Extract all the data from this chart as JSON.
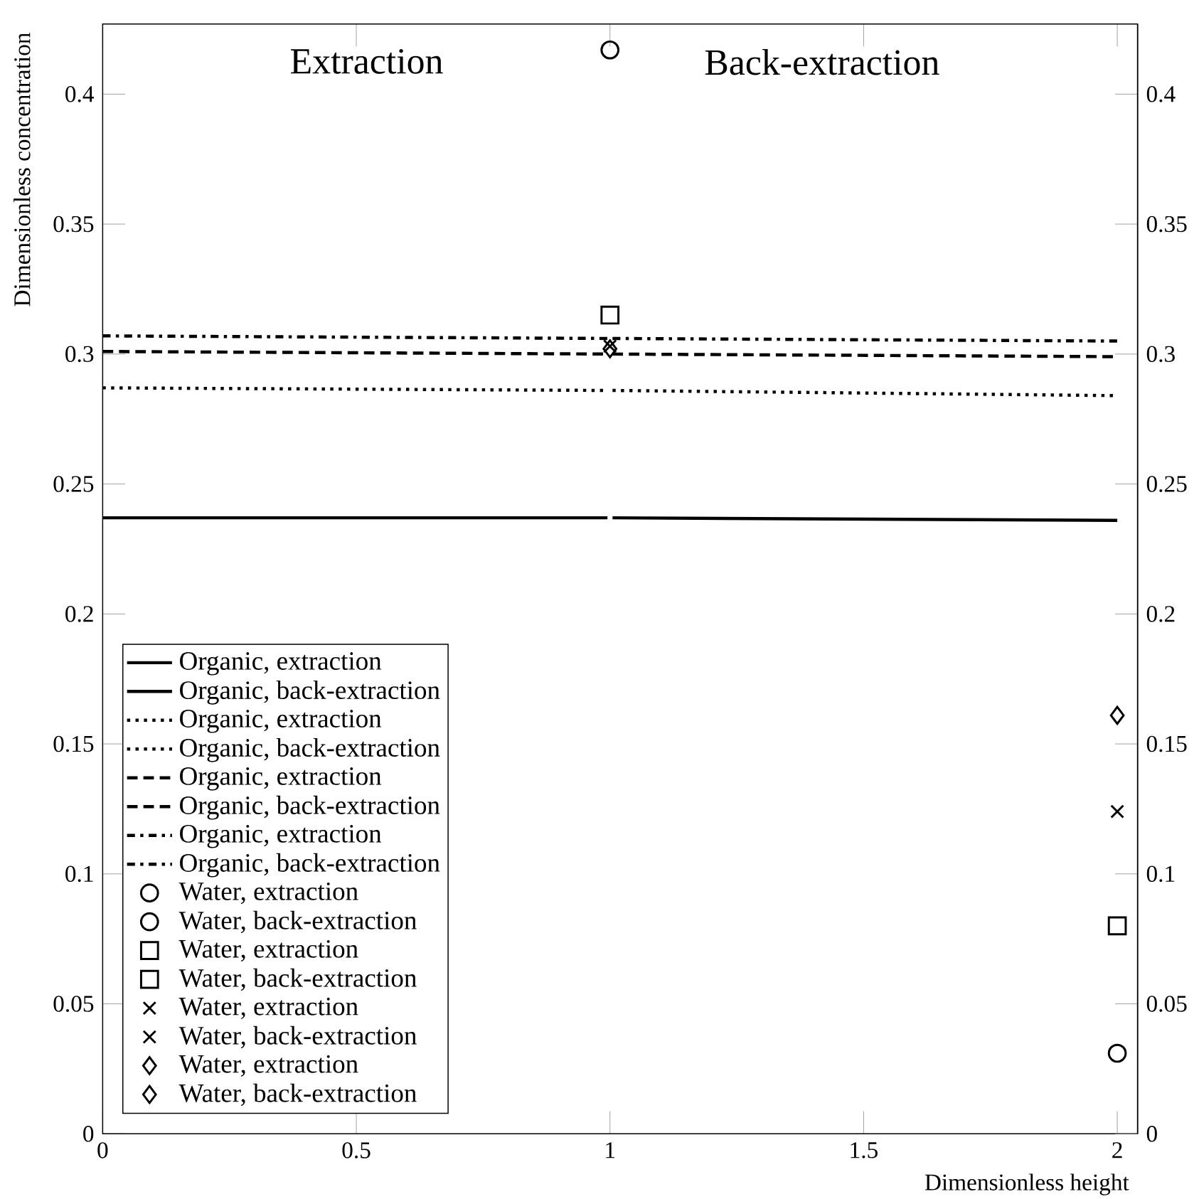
{
  "chart_data": {
    "type": "line",
    "xlabel": "Dimensionless height",
    "ylabel": "Dimensionless concentration",
    "annotations": [
      "Extraction",
      "Back-extraction"
    ],
    "xlim": [
      0,
      2.04
    ],
    "ylim": [
      0,
      0.427
    ],
    "xticks": [
      0,
      0.5,
      1,
      1.5,
      2
    ],
    "yticks": [
      0,
      0.05,
      0.1,
      0.15,
      0.2,
      0.25,
      0.3,
      0.35,
      0.4
    ],
    "y2lim": [
      0,
      0.427
    ],
    "y2ticks": [
      0,
      0.05,
      0.1,
      0.15,
      0.2,
      0.25,
      0.3,
      0.35,
      0.4
    ],
    "grid": false,
    "legend": "bottom left",
    "series": [
      {
        "name": "Organic, extraction",
        "line_style": "solid",
        "color": "#000000",
        "x": [
          0,
          0.995
        ],
        "values": [
          0.237,
          0.237
        ]
      },
      {
        "name": "Organic, back-extraction",
        "line_style": "solid",
        "color": "#000000",
        "x": [
          1.005,
          2
        ],
        "values": [
          0.237,
          0.236
        ]
      },
      {
        "name": "Organic, extraction",
        "line_style": "dotted",
        "color": "#000000",
        "x": [
          0,
          0.995
        ],
        "values": [
          0.287,
          0.286
        ]
      },
      {
        "name": "Organic, back-extraction",
        "line_style": "dotted",
        "color": "#000000",
        "x": [
          1.005,
          2
        ],
        "values": [
          0.286,
          0.284
        ]
      },
      {
        "name": "Organic, extraction",
        "line_style": "dashed",
        "color": "#000000",
        "x": [
          0,
          0.995
        ],
        "values": [
          0.301,
          0.3
        ]
      },
      {
        "name": "Organic, back-extraction",
        "line_style": "dashed",
        "color": "#000000",
        "x": [
          1.005,
          2
        ],
        "values": [
          0.3,
          0.299
        ]
      },
      {
        "name": "Organic, extraction",
        "line_style": "dashdot",
        "color": "#000000",
        "x": [
          0,
          0.995
        ],
        "values": [
          0.307,
          0.306
        ]
      },
      {
        "name": "Organic, back-extraction",
        "line_style": "dashdot",
        "color": "#000000",
        "x": [
          1.005,
          2
        ],
        "values": [
          0.306,
          0.305
        ]
      },
      {
        "name": "Water, extraction",
        "type": "scatter",
        "marker": "circle",
        "color": "#000000",
        "x": [
          1
        ],
        "values": [
          0.417
        ]
      },
      {
        "name": "Water, back-extraction",
        "type": "scatter",
        "marker": "circle",
        "color": "#000000",
        "x": [
          2
        ],
        "values": [
          0.031
        ]
      },
      {
        "name": "Water, extraction",
        "type": "scatter",
        "marker": "square",
        "color": "#000000",
        "x": [
          1
        ],
        "values": [
          0.315
        ]
      },
      {
        "name": "Water, back-extraction",
        "type": "scatter",
        "marker": "square",
        "color": "#000000",
        "x": [
          2
        ],
        "values": [
          0.08
        ]
      },
      {
        "name": "Water, extraction",
        "type": "scatter",
        "marker": "cross",
        "color": "#000000",
        "x": [
          1
        ],
        "values": [
          0.303
        ]
      },
      {
        "name": "Water, back-extraction",
        "type": "scatter",
        "marker": "cross",
        "color": "#000000",
        "x": [
          2
        ],
        "values": [
          0.124
        ]
      },
      {
        "name": "Water, extraction",
        "type": "scatter",
        "marker": "diamond",
        "color": "#000000",
        "x": [
          1
        ],
        "values": [
          0.302
        ]
      },
      {
        "name": "Water, back-extraction",
        "type": "scatter",
        "marker": "diamond",
        "color": "#000000",
        "x": [
          2
        ],
        "values": [
          0.161
        ]
      }
    ]
  }
}
